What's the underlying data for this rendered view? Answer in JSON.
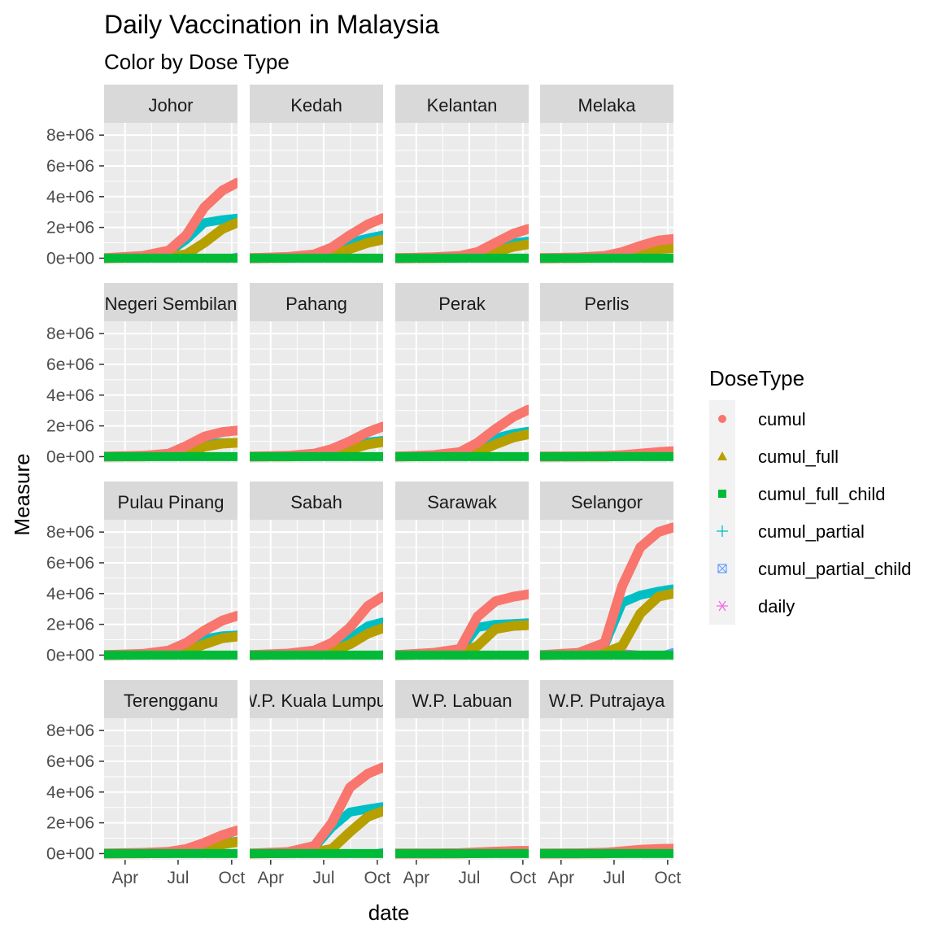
{
  "chart_data": {
    "type": "line",
    "title": "Daily Vaccination in Malaysia",
    "subtitle": "Color by Dose Type",
    "xlabel": "date",
    "ylabel": "Measure",
    "x_ticks": [
      "Apr",
      "Jul",
      "Oct"
    ],
    "x_tick_dates": [
      "2021-04-01",
      "2021-07-01",
      "2021-10-01"
    ],
    "x_range": [
      "2021-02-24",
      "2021-10-11"
    ],
    "y_ticks": [
      "0e+00",
      "2e+06",
      "4e+06",
      "6e+06",
      "8e+06"
    ],
    "y_tick_values": [
      0,
      2000000,
      4000000,
      6000000,
      8000000
    ],
    "ylim": [
      -400000,
      8800000
    ],
    "grid": true,
    "legend": {
      "title": "DoseType",
      "position": "right",
      "items": [
        {
          "label": "cumul",
          "color": "#F8766D",
          "shape": "circle"
        },
        {
          "label": "cumul_full",
          "color": "#B79F00",
          "shape": "triangle"
        },
        {
          "label": "cumul_full_child",
          "color": "#00BA38",
          "shape": "square"
        },
        {
          "label": "cumul_partial",
          "color": "#00BFC4",
          "shape": "plus"
        },
        {
          "label": "cumul_partial_child",
          "color": "#619CFF",
          "shape": "square-x"
        },
        {
          "label": "daily",
          "color": "#F564E3",
          "shape": "asterisk"
        }
      ]
    },
    "dates": [
      "2021-02-24",
      "2021-05-01",
      "2021-06-15",
      "2021-07-15",
      "2021-08-15",
      "2021-09-15",
      "2021-10-10"
    ],
    "facets": [
      {
        "name": "Johor",
        "series": {
          "cumul": [
            0,
            150000,
            500000,
            1500000,
            3300000,
            4400000,
            4900000
          ],
          "cumul_full": [
            0,
            50000,
            100000,
            250000,
            1000000,
            1900000,
            2300000
          ],
          "cumul_partial": [
            0,
            100000,
            400000,
            1200000,
            2300000,
            2500000,
            2600000
          ],
          "cumul_partial_child": [
            0,
            0,
            0,
            0,
            0,
            0,
            200000
          ],
          "daily": [
            0,
            8000,
            40000,
            80000,
            90000,
            50000,
            30000
          ]
        }
      },
      {
        "name": "Kedah",
        "series": {
          "cumul": [
            0,
            80000,
            250000,
            700000,
            1500000,
            2200000,
            2600000
          ],
          "cumul_full": [
            0,
            30000,
            60000,
            200000,
            600000,
            1000000,
            1200000
          ],
          "cumul_partial": [
            0,
            50000,
            190000,
            500000,
            1000000,
            1300000,
            1500000
          ],
          "cumul_partial_child": [
            0,
            0,
            0,
            0,
            0,
            0,
            100000
          ],
          "daily": [
            0,
            5000,
            15000,
            30000,
            40000,
            30000,
            20000
          ]
        }
      },
      {
        "name": "Kelantan",
        "series": {
          "cumul": [
            0,
            60000,
            150000,
            400000,
            1000000,
            1600000,
            1900000
          ],
          "cumul_full": [
            0,
            20000,
            40000,
            120000,
            400000,
            750000,
            900000
          ],
          "cumul_partial": [
            0,
            40000,
            110000,
            300000,
            700000,
            1000000,
            1100000
          ],
          "cumul_partial_child": [
            0,
            0,
            0,
            0,
            0,
            0,
            80000
          ],
          "daily": [
            0,
            4000,
            10000,
            20000,
            30000,
            25000,
            15000
          ]
        }
      },
      {
        "name": "Melaka",
        "series": {
          "cumul": [
            0,
            50000,
            150000,
            400000,
            800000,
            1150000,
            1250000
          ],
          "cumul_full": [
            0,
            20000,
            50000,
            150000,
            400000,
            600000,
            650000
          ],
          "cumul_partial": [
            0,
            30000,
            100000,
            300000,
            550000,
            620000,
            640000
          ],
          "cumul_partial_child": [
            0,
            0,
            0,
            0,
            0,
            0,
            50000
          ],
          "daily": [
            0,
            3000,
            8000,
            15000,
            15000,
            8000,
            5000
          ]
        }
      },
      {
        "name": "Negeri Sembilan",
        "series": {
          "cumul": [
            0,
            60000,
            200000,
            700000,
            1300000,
            1600000,
            1700000
          ],
          "cumul_full": [
            0,
            20000,
            60000,
            200000,
            650000,
            850000,
            900000
          ],
          "cumul_partial": [
            0,
            40000,
            150000,
            500000,
            850000,
            900000,
            920000
          ],
          "cumul_partial_child": [
            0,
            0,
            0,
            0,
            0,
            0,
            60000
          ],
          "daily": [
            0,
            4000,
            12000,
            25000,
            20000,
            8000,
            5000
          ]
        }
      },
      {
        "name": "Pahang",
        "series": {
          "cumul": [
            0,
            60000,
            200000,
            500000,
            1000000,
            1600000,
            1950000
          ],
          "cumul_full": [
            0,
            20000,
            50000,
            150000,
            450000,
            800000,
            950000
          ],
          "cumul_partial": [
            0,
            40000,
            150000,
            350000,
            650000,
            950000,
            1050000
          ],
          "cumul_partial_child": [
            0,
            0,
            0,
            0,
            0,
            0,
            70000
          ],
          "daily": [
            0,
            4000,
            10000,
            20000,
            30000,
            25000,
            15000
          ]
        }
      },
      {
        "name": "Perak",
        "series": {
          "cumul": [
            0,
            100000,
            300000,
            900000,
            1800000,
            2600000,
            3050000
          ],
          "cumul_full": [
            0,
            40000,
            100000,
            300000,
            800000,
            1250000,
            1450000
          ],
          "cumul_partial": [
            0,
            60000,
            250000,
            650000,
            1200000,
            1500000,
            1650000
          ],
          "cumul_partial_child": [
            0,
            0,
            0,
            0,
            0,
            0,
            120000
          ],
          "daily": [
            0,
            6000,
            20000,
            40000,
            45000,
            30000,
            20000
          ]
        }
      },
      {
        "name": "Perlis",
        "series": {
          "cumul": [
            0,
            20000,
            50000,
            100000,
            200000,
            300000,
            350000
          ],
          "cumul_full": [
            0,
            5000,
            15000,
            40000,
            90000,
            140000,
            170000
          ],
          "cumul_partial": [
            0,
            10000,
            35000,
            70000,
            120000,
            160000,
            180000
          ],
          "cumul_partial_child": [
            0,
            0,
            0,
            0,
            0,
            0,
            10000
          ],
          "daily": [
            0,
            1000,
            2000,
            4000,
            5000,
            3000,
            2000
          ]
        }
      },
      {
        "name": "Pulau Pinang",
        "series": {
          "cumul": [
            0,
            80000,
            300000,
            800000,
            1600000,
            2250000,
            2550000
          ],
          "cumul_full": [
            0,
            30000,
            80000,
            250000,
            700000,
            1100000,
            1200000
          ],
          "cumul_partial": [
            0,
            50000,
            230000,
            550000,
            1050000,
            1250000,
            1300000
          ],
          "cumul_partial_child": [
            0,
            0,
            0,
            0,
            0,
            0,
            90000
          ],
          "daily": [
            0,
            5000,
            20000,
            35000,
            40000,
            20000,
            10000
          ]
        }
      },
      {
        "name": "Sabah",
        "series": {
          "cumul": [
            0,
            100000,
            300000,
            800000,
            1800000,
            3200000,
            3800000
          ],
          "cumul_full": [
            0,
            40000,
            100000,
            250000,
            700000,
            1400000,
            1750000
          ],
          "cumul_partial": [
            0,
            60000,
            200000,
            550000,
            1100000,
            1900000,
            2150000
          ],
          "cumul_partial_child": [
            0,
            0,
            0,
            0,
            0,
            0,
            150000
          ],
          "daily": [
            0,
            6000,
            20000,
            40000,
            60000,
            50000,
            35000
          ]
        }
      },
      {
        "name": "Sarawak",
        "series": {
          "cumul": [
            0,
            150000,
            400000,
            2500000,
            3500000,
            3800000,
            3950000
          ],
          "cumul_full": [
            0,
            50000,
            100000,
            600000,
            1700000,
            1900000,
            1950000
          ],
          "cumul_partial": [
            0,
            100000,
            300000,
            1800000,
            2000000,
            2050000,
            2100000
          ],
          "cumul_partial_child": [
            0,
            0,
            0,
            0,
            0,
            0,
            150000
          ],
          "daily": [
            0,
            8000,
            40000,
            120000,
            40000,
            15000,
            10000
          ]
        }
      },
      {
        "name": "Selangor",
        "series": {
          "cumul": [
            0,
            150000,
            800000,
            4500000,
            7000000,
            8000000,
            8300000
          ],
          "cumul_full": [
            0,
            50000,
            150000,
            600000,
            2700000,
            3800000,
            4000000
          ],
          "cumul_partial": [
            0,
            100000,
            650000,
            3400000,
            3900000,
            4150000,
            4300000
          ],
          "cumul_partial_child": [
            0,
            0,
            0,
            0,
            0,
            0,
            300000
          ],
          "daily": [
            0,
            10000,
            60000,
            250000,
            150000,
            60000,
            30000
          ]
        }
      },
      {
        "name": "Terengganu",
        "series": {
          "cumul": [
            0,
            50000,
            120000,
            300000,
            700000,
            1200000,
            1500000
          ],
          "cumul_full": [
            0,
            20000,
            40000,
            100000,
            300000,
            600000,
            750000
          ],
          "cumul_partial": [
            0,
            30000,
            80000,
            200000,
            450000,
            700000,
            800000
          ],
          "cumul_partial_child": [
            0,
            0,
            0,
            0,
            0,
            0,
            50000
          ],
          "daily": [
            0,
            3000,
            6000,
            12000,
            20000,
            18000,
            12000
          ]
        }
      },
      {
        "name": "W.P. Kuala Lumpur",
        "series": {
          "cumul": [
            0,
            100000,
            500000,
            2000000,
            4300000,
            5200000,
            5600000
          ],
          "cumul_full": [
            0,
            40000,
            100000,
            300000,
            1400000,
            2400000,
            2750000
          ],
          "cumul_partial": [
            0,
            60000,
            400000,
            1700000,
            2700000,
            2900000,
            3050000
          ],
          "cumul_partial_child": [
            0,
            0,
            0,
            0,
            0,
            0,
            200000
          ],
          "daily": [
            0,
            6000,
            30000,
            100000,
            80000,
            30000,
            20000
          ]
        }
      },
      {
        "name": "W.P. Labuan",
        "series": {
          "cumul": [
            0,
            10000,
            30000,
            80000,
            130000,
            170000,
            180000
          ],
          "cumul_full": [
            0,
            4000,
            10000,
            30000,
            60000,
            80000,
            90000
          ],
          "cumul_partial": [
            0,
            6000,
            20000,
            50000,
            70000,
            90000,
            95000
          ],
          "cumul_partial_child": [
            0,
            0,
            0,
            0,
            0,
            0,
            5000
          ],
          "daily": [
            0,
            500,
            1500,
            3000,
            2500,
            1000,
            500
          ]
        }
      },
      {
        "name": "W.P. Putrajaya",
        "series": {
          "cumul": [
            0,
            20000,
            60000,
            150000,
            250000,
            300000,
            320000
          ],
          "cumul_full": [
            0,
            8000,
            20000,
            60000,
            120000,
            150000,
            160000
          ],
          "cumul_partial": [
            0,
            12000,
            40000,
            90000,
            130000,
            150000,
            160000
          ],
          "cumul_partial_child": [
            0,
            0,
            0,
            0,
            0,
            0,
            10000
          ],
          "daily": [
            0,
            1000,
            3000,
            5000,
            4000,
            2000,
            1000
          ]
        }
      }
    ]
  }
}
